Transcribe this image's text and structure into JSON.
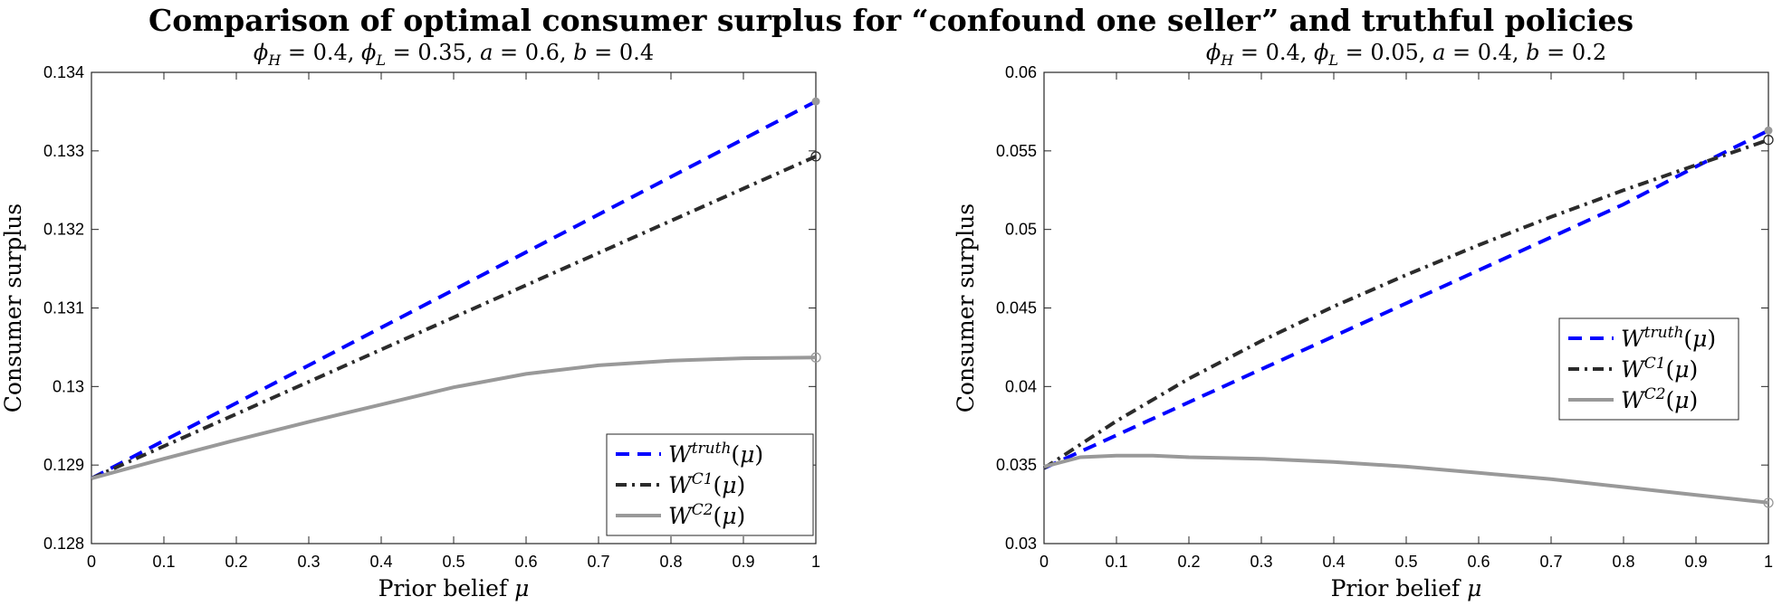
{
  "suptitle": "Comparison of optimal consumer surplus for “confound one seller” and truthful policies",
  "chart_data": [
    {
      "type": "line",
      "title_parts": [
        "ϕ",
        "H",
        " = 0.4, ",
        "ϕ",
        "L",
        " = 0.35, ",
        "a",
        " = 0.6, ",
        "b",
        " = 0.4"
      ],
      "xlabel_text": "Prior belief ",
      "xlabel_symbol": "μ",
      "ylabel": "Consumer surplus",
      "xlim": [
        0,
        1
      ],
      "ylim": [
        0.128,
        0.134
      ],
      "xticks": [
        0,
        0.1,
        0.2,
        0.3,
        0.4,
        0.5,
        0.6,
        0.7,
        0.8,
        0.9,
        1
      ],
      "xtick_labels": [
        "0",
        "0.1",
        "0.2",
        "0.3",
        "0.4",
        "0.5",
        "0.6",
        "0.7",
        "0.8",
        "0.9",
        "1"
      ],
      "yticks": [
        0.128,
        0.129,
        0.13,
        0.131,
        0.132,
        0.133,
        0.134
      ],
      "ytick_labels": [
        "0.128",
        "0.129",
        "0.13",
        "0.131",
        "0.132",
        "0.133",
        "0.134"
      ],
      "legend_position": "bottom-right",
      "grid": false,
      "series": [
        {
          "legend_base": "W",
          "legend_sup": "truth",
          "legend_arg": "(μ)",
          "color": "#0000ff",
          "style": "dashed",
          "x": [
            0,
            0.1,
            0.2,
            0.3,
            0.4,
            0.5,
            0.6,
            0.7,
            0.8,
            0.9,
            1
          ],
          "y": [
            0.12883,
            0.12931,
            0.12979,
            0.13027,
            0.13075,
            0.13123,
            0.13171,
            0.13219,
            0.13267,
            0.13315,
            0.13363
          ],
          "end_marker": "dot"
        },
        {
          "legend_base": "W",
          "legend_sup": "C1",
          "legend_arg": "(μ)",
          "color": "#2b2b2b",
          "style": "dashdot",
          "x": [
            0,
            0.1,
            0.2,
            0.3,
            0.4,
            0.5,
            0.6,
            0.7,
            0.8,
            0.9,
            1
          ],
          "y": [
            0.12883,
            0.12924,
            0.12965,
            0.13006,
            0.13047,
            0.13088,
            0.13129,
            0.1317,
            0.13211,
            0.13252,
            0.13293
          ],
          "end_marker": "circle"
        },
        {
          "legend_base": "W",
          "legend_sup": "C2",
          "legend_arg": "(μ)",
          "color": "#999999",
          "style": "solid",
          "x": [
            0,
            0.1,
            0.2,
            0.3,
            0.4,
            0.5,
            0.6,
            0.7,
            0.8,
            0.9,
            1
          ],
          "y": [
            0.12883,
            0.12908,
            0.12932,
            0.12955,
            0.12977,
            0.12999,
            0.13016,
            0.13027,
            0.13033,
            0.13036,
            0.13037
          ],
          "end_marker": "circle"
        }
      ]
    },
    {
      "type": "line",
      "title_parts": [
        "ϕ",
        "H",
        " = 0.4, ",
        "ϕ",
        "L",
        " = 0.05, ",
        "a",
        " = 0.4, ",
        "b",
        " = 0.2"
      ],
      "xlabel_text": "Prior belief ",
      "xlabel_symbol": "μ",
      "ylabel": "Consumer surplus",
      "xlim": [
        0,
        1
      ],
      "ylim": [
        0.03,
        0.06
      ],
      "xticks": [
        0,
        0.1,
        0.2,
        0.3,
        0.4,
        0.5,
        0.6,
        0.7,
        0.8,
        0.9,
        1
      ],
      "xtick_labels": [
        "0",
        "0.1",
        "0.2",
        "0.3",
        "0.4",
        "0.5",
        "0.6",
        "0.7",
        "0.8",
        "0.9",
        "1"
      ],
      "yticks": [
        0.03,
        0.035,
        0.04,
        0.045,
        0.05,
        0.055,
        0.06
      ],
      "ytick_labels": [
        "0.03",
        "0.035",
        "0.04",
        "0.045",
        "0.05",
        "0.055",
        "0.06"
      ],
      "legend_position": "right",
      "grid": false,
      "series": [
        {
          "legend_base": "W",
          "legend_sup": "truth",
          "legend_arg": "(μ)",
          "color": "#0000ff",
          "style": "dashed",
          "x": [
            0,
            0.1,
            0.2,
            0.3,
            0.4,
            0.5,
            0.6,
            0.7,
            0.8,
            0.9,
            1
          ],
          "y": [
            0.0348,
            0.0369,
            0.039,
            0.0411,
            0.0432,
            0.0453,
            0.0474,
            0.0495,
            0.0516,
            0.054,
            0.0563
          ],
          "end_marker": "dot"
        },
        {
          "legend_base": "W",
          "legend_sup": "C1",
          "legend_arg": "(μ)",
          "color": "#2b2b2b",
          "style": "dashdot",
          "x": [
            0,
            0.1,
            0.2,
            0.3,
            0.4,
            0.5,
            0.6,
            0.7,
            0.8,
            0.9,
            1
          ],
          "y": [
            0.0348,
            0.0378,
            0.0405,
            0.0429,
            0.0451,
            0.0471,
            0.049,
            0.0508,
            0.0525,
            0.0541,
            0.0557
          ],
          "end_marker": "circle"
        },
        {
          "legend_base": "W",
          "legend_sup": "C2",
          "legend_arg": "(μ)",
          "color": "#999999",
          "style": "solid",
          "x": [
            0,
            0.05,
            0.1,
            0.15,
            0.2,
            0.3,
            0.4,
            0.5,
            0.6,
            0.7,
            0.8,
            0.9,
            1
          ],
          "y": [
            0.0349,
            0.0355,
            0.0356,
            0.0356,
            0.0355,
            0.0354,
            0.0352,
            0.0349,
            0.0345,
            0.0341,
            0.0336,
            0.0331,
            0.0326
          ],
          "end_marker": "circle"
        }
      ]
    }
  ]
}
